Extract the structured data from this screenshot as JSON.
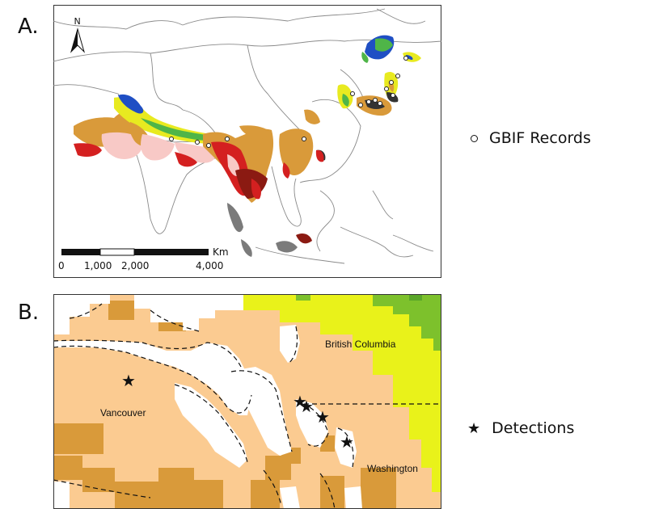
{
  "panel_a": {
    "label": "A.",
    "north_label": "N",
    "scale_unit": "Km",
    "scale_ticks": [
      "0",
      "1,000",
      "2,000",
      "4,000"
    ],
    "legend": {
      "marker": "○",
      "label": "GBIF Records"
    },
    "colors": {
      "land": "#ffffff",
      "border": "#8a8a8a",
      "range_light": "#f8c9c6",
      "range_orange": "#d99a3a",
      "range_red": "#d42020",
      "range_darkred": "#8b1a12",
      "range_gray": "#7b7b7b",
      "range_yellow": "#e8ea20",
      "range_green": "#4fb548",
      "range_blue": "#1f4fc4"
    }
  },
  "panel_b": {
    "label": "B.",
    "places": [
      {
        "id": "british-columbia",
        "text": "British Columbia"
      },
      {
        "id": "vancouver",
        "text": "Vancouver"
      },
      {
        "id": "washington",
        "text": "Washington"
      }
    ],
    "legend": {
      "marker": "★",
      "label": "Detections"
    },
    "colors": {
      "low": "#fbcb91",
      "mid": "#d99a3a",
      "high": "#e9f21a",
      "top": "#7dc12c",
      "water": "#ffffff"
    }
  }
}
